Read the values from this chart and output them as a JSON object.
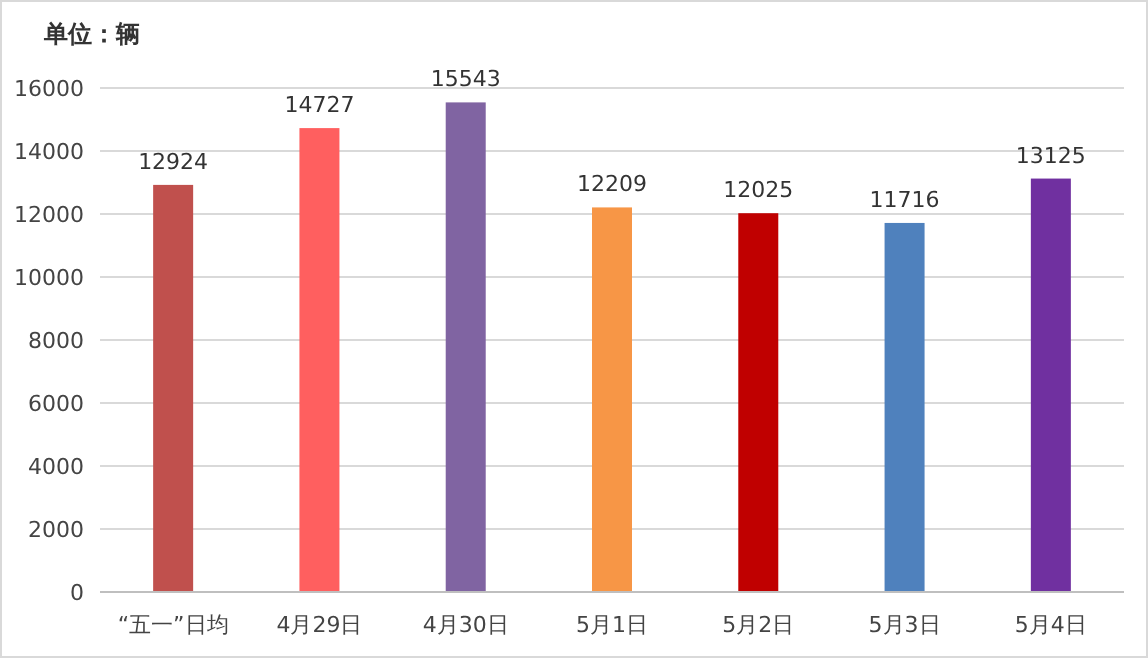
{
  "chart_data": {
    "type": "bar",
    "title": "单位：辆",
    "categories": [
      "“五一”日均",
      "4月29日",
      "4月30日",
      "5月1日",
      "5月2日",
      "5月3日",
      "5月4日"
    ],
    "values": [
      12924,
      14727,
      15543,
      12209,
      12025,
      11716,
      13125
    ],
    "colors": [
      "#c0504d",
      "#ff5f5f",
      "#8064a2",
      "#f79646",
      "#c00000",
      "#4f81bd",
      "#7030a0"
    ],
    "ylim": [
      0,
      16000
    ],
    "yticks": [
      0,
      2000,
      4000,
      6000,
      8000,
      10000,
      12000,
      14000,
      16000
    ],
    "grid": "y",
    "data_labels": true
  }
}
